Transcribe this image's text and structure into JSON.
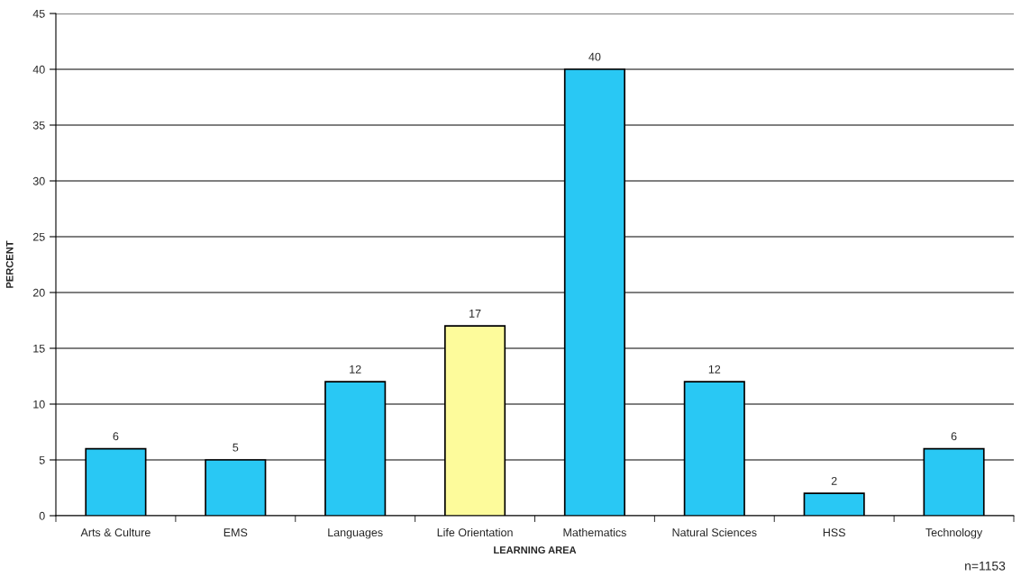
{
  "chart_data": {
    "type": "bar",
    "xlabel": "LEARNING AREA",
    "ylabel": "PERCENT",
    "categories": [
      "Arts & Culture",
      "EMS",
      "Languages",
      "Life Orientation",
      "Mathematics",
      "Natural Sciences",
      "HSS",
      "Technology"
    ],
    "values": [
      6,
      5,
      12,
      17,
      40,
      12,
      2,
      6
    ],
    "colors": [
      "#29c8f4",
      "#29c8f4",
      "#29c8f4",
      "#fdfb9b",
      "#29c8f4",
      "#29c8f4",
      "#29c8f4",
      "#29c8f4"
    ],
    "ylim": [
      0,
      45
    ],
    "yticks": [
      0,
      5,
      10,
      15,
      20,
      25,
      30,
      35,
      40,
      45
    ],
    "grid": "y",
    "data_labels": true,
    "annotations": [
      "n=1153"
    ]
  }
}
